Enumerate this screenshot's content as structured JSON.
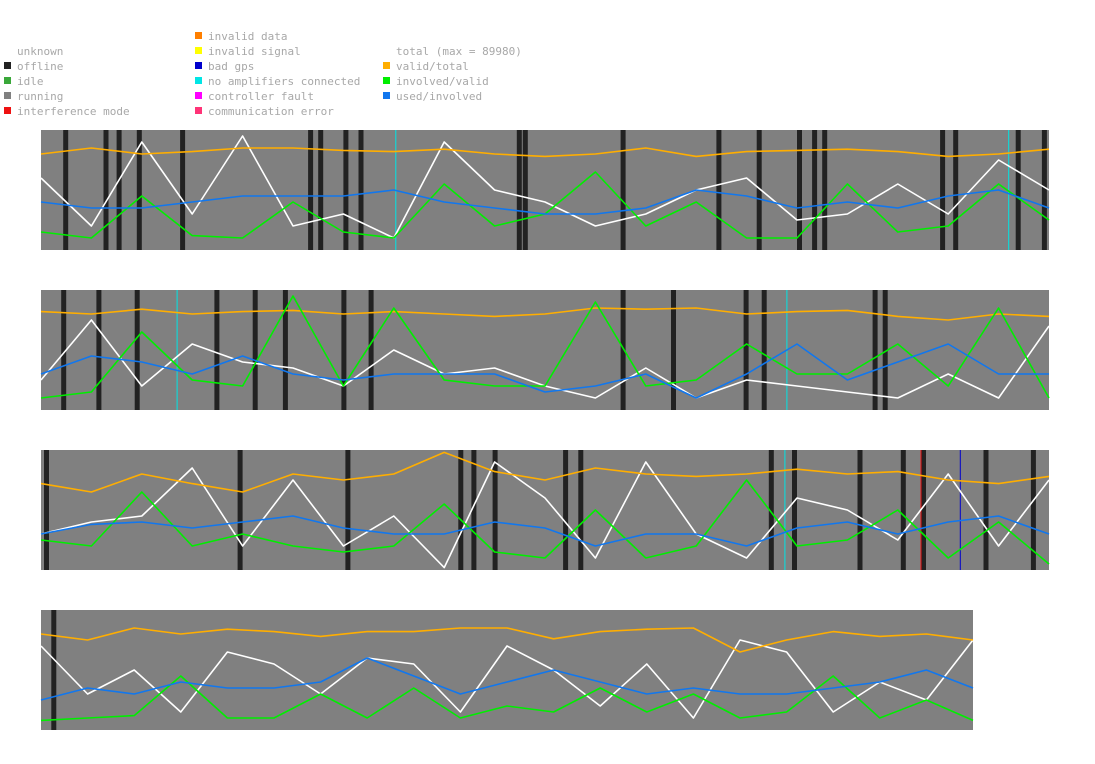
{
  "legend": {
    "status_items": [
      {
        "label": "unknown",
        "color": ""
      },
      {
        "label": "offline",
        "color": "#222222"
      },
      {
        "label": "idle",
        "color": "#3aa83a"
      },
      {
        "label": "running",
        "color": "#808080"
      },
      {
        "label": "interference mode",
        "color": "#ee1111"
      }
    ],
    "error_items": [
      {
        "label": "invalid data",
        "color": "#ff7f00"
      },
      {
        "label": "invalid signal",
        "color": "#ffff00"
      },
      {
        "label": "bad gps",
        "color": "#0000cc"
      },
      {
        "label": "no amplifiers connected",
        "color": "#00e5e5"
      },
      {
        "label": "controller fault",
        "color": "#ff00ff"
      },
      {
        "label": "communication error",
        "color": "#ff3377"
      }
    ],
    "line_items": [
      {
        "label": "total (max = 89980)",
        "color": ""
      },
      {
        "label": "valid/total",
        "color": "#ffae00"
      },
      {
        "label": "involved/valid",
        "color": "#00ee00"
      },
      {
        "label": "used/involved",
        "color": "#1177ee"
      }
    ]
  },
  "colors": {
    "running": "#808080",
    "offline": "#222222",
    "total": "#ffffff",
    "valid_total": "#ffae00",
    "involved_valid": "#00ee00",
    "used_involved": "#1177ee",
    "no_amplifiers": "#00e5e5",
    "interference": "#ee1111",
    "bad_gps": "#0000cc"
  },
  "chart_data": [
    {
      "type": "line",
      "x": [
        0,
        0.05,
        0.1,
        0.15,
        0.2,
        0.25,
        0.3,
        0.35,
        0.4,
        0.45,
        0.5,
        0.55,
        0.6,
        0.65,
        0.7,
        0.75,
        0.8,
        0.85,
        0.9,
        0.95,
        1
      ],
      "series": [
        {
          "name": "total",
          "values": [
            0.6,
            0.2,
            0.9,
            0.3,
            0.95,
            0.2,
            0.3,
            0.1,
            0.9,
            0.5,
            0.4,
            0.2,
            0.3,
            0.5,
            0.6,
            0.25,
            0.3,
            0.55,
            0.3,
            0.75,
            0.5
          ]
        },
        {
          "name": "valid/total",
          "values": [
            0.8,
            0.85,
            0.8,
            0.82,
            0.85,
            0.85,
            0.83,
            0.82,
            0.84,
            0.8,
            0.78,
            0.8,
            0.85,
            0.78,
            0.82,
            0.83,
            0.84,
            0.82,
            0.78,
            0.8,
            0.84
          ]
        },
        {
          "name": "involved/valid",
          "values": [
            0.15,
            0.1,
            0.45,
            0.12,
            0.1,
            0.4,
            0.15,
            0.1,
            0.55,
            0.2,
            0.3,
            0.65,
            0.2,
            0.4,
            0.1,
            0.1,
            0.55,
            0.15,
            0.2,
            0.55,
            0.25
          ]
        },
        {
          "name": "used/involved",
          "values": [
            0.4,
            0.35,
            0.35,
            0.4,
            0.45,
            0.45,
            0.45,
            0.5,
            0.4,
            0.35,
            0.3,
            0.3,
            0.35,
            0.5,
            0.45,
            0.35,
            0.4,
            0.35,
            0.45,
            0.5,
            0.35
          ]
        }
      ],
      "offline_bands": [
        0.022,
        0.062,
        0.075,
        0.095,
        0.138,
        0.265,
        0.275,
        0.3,
        0.315,
        0.472,
        0.478,
        0.575,
        0.67,
        0.71,
        0.75,
        0.765,
        0.775,
        0.892,
        0.905,
        0.967,
        0.993
      ],
      "error_marks": [
        {
          "pos": 0.352,
          "kind": "no amplifiers connected"
        },
        {
          "pos": 0.96,
          "kind": "no amplifiers connected"
        }
      ]
    },
    {
      "type": "line",
      "x": [
        0,
        0.05,
        0.1,
        0.15,
        0.2,
        0.25,
        0.3,
        0.35,
        0.4,
        0.45,
        0.5,
        0.55,
        0.6,
        0.65,
        0.7,
        0.75,
        0.8,
        0.85,
        0.9,
        0.95,
        1
      ],
      "series": [
        {
          "name": "total",
          "values": [
            0.25,
            0.75,
            0.2,
            0.55,
            0.4,
            0.35,
            0.2,
            0.5,
            0.3,
            0.35,
            0.2,
            0.1,
            0.35,
            0.1,
            0.25,
            0.2,
            0.15,
            0.1,
            0.3,
            0.1,
            0.7
          ]
        },
        {
          "name": "valid/total",
          "values": [
            0.82,
            0.8,
            0.84,
            0.8,
            0.82,
            0.83,
            0.8,
            0.82,
            0.8,
            0.78,
            0.8,
            0.85,
            0.84,
            0.85,
            0.8,
            0.82,
            0.83,
            0.78,
            0.75,
            0.8,
            0.78
          ]
        },
        {
          "name": "involved/valid",
          "values": [
            0.1,
            0.15,
            0.65,
            0.25,
            0.2,
            0.95,
            0.2,
            0.85,
            0.25,
            0.2,
            0.2,
            0.9,
            0.2,
            0.25,
            0.55,
            0.3,
            0.3,
            0.55,
            0.2,
            0.85,
            0.1
          ]
        },
        {
          "name": "used/involved",
          "values": [
            0.3,
            0.45,
            0.4,
            0.3,
            0.45,
            0.3,
            0.25,
            0.3,
            0.3,
            0.3,
            0.15,
            0.2,
            0.3,
            0.1,
            0.3,
            0.55,
            0.25,
            0.4,
            0.55,
            0.3,
            0.3
          ]
        }
      ],
      "offline_bands": [
        0.02,
        0.055,
        0.093,
        0.172,
        0.21,
        0.24,
        0.298,
        0.325,
        0.575,
        0.625,
        0.697,
        0.715,
        0.825,
        0.835
      ],
      "error_marks": [
        {
          "pos": 0.135,
          "kind": "no amplifiers connected"
        },
        {
          "pos": 0.74,
          "kind": "no amplifiers connected"
        }
      ]
    },
    {
      "type": "line",
      "x": [
        0,
        0.05,
        0.1,
        0.15,
        0.2,
        0.25,
        0.3,
        0.35,
        0.4,
        0.45,
        0.5,
        0.55,
        0.6,
        0.65,
        0.7,
        0.75,
        0.8,
        0.85,
        0.9,
        0.95,
        1
      ],
      "series": [
        {
          "name": "total",
          "values": [
            0.3,
            0.4,
            0.45,
            0.85,
            0.2,
            0.75,
            0.2,
            0.45,
            0.02,
            0.9,
            0.6,
            0.1,
            0.9,
            0.3,
            0.1,
            0.6,
            0.5,
            0.25,
            0.8,
            0.2,
            0.75
          ]
        },
        {
          "name": "valid/total",
          "values": [
            0.72,
            0.65,
            0.8,
            0.72,
            0.65,
            0.8,
            0.75,
            0.8,
            0.98,
            0.82,
            0.75,
            0.85,
            0.8,
            0.78,
            0.8,
            0.84,
            0.8,
            0.82,
            0.75,
            0.72,
            0.78
          ]
        },
        {
          "name": "involved/valid",
          "values": [
            0.25,
            0.2,
            0.65,
            0.2,
            0.3,
            0.2,
            0.15,
            0.2,
            0.55,
            0.15,
            0.1,
            0.5,
            0.1,
            0.2,
            0.75,
            0.2,
            0.25,
            0.5,
            0.1,
            0.4,
            0.05
          ]
        },
        {
          "name": "used/involved",
          "values": [
            0.3,
            0.38,
            0.4,
            0.35,
            0.4,
            0.45,
            0.35,
            0.3,
            0.3,
            0.4,
            0.35,
            0.2,
            0.3,
            0.3,
            0.2,
            0.35,
            0.4,
            0.3,
            0.4,
            0.45,
            0.3
          ]
        }
      ],
      "offline_bands": [
        0.003,
        0.195,
        0.302,
        0.414,
        0.427,
        0.448,
        0.518,
        0.533,
        0.722,
        0.745,
        0.81,
        0.853,
        0.873,
        0.935,
        0.982
      ],
      "error_marks": [
        {
          "pos": 0.738,
          "kind": "no amplifiers connected"
        },
        {
          "pos": 0.873,
          "kind": "interference mode"
        },
        {
          "pos": 0.912,
          "kind": "bad gps"
        }
      ]
    },
    {
      "type": "line",
      "x": [
        0,
        0.05,
        0.1,
        0.15,
        0.2,
        0.25,
        0.3,
        0.35,
        0.4,
        0.45,
        0.5,
        0.55,
        0.6,
        0.65,
        0.7,
        0.75,
        0.8,
        0.85,
        0.9,
        0.95,
        1
      ],
      "series": [
        {
          "name": "total",
          "values": [
            0.7,
            0.3,
            0.5,
            0.15,
            0.65,
            0.55,
            0.3,
            0.6,
            0.55,
            0.15,
            0.7,
            0.5,
            0.2,
            0.55,
            0.1,
            0.75,
            0.65,
            0.15,
            0.4,
            0.25,
            0.75
          ]
        },
        {
          "name": "valid/total",
          "values": [
            0.8,
            0.75,
            0.85,
            0.8,
            0.84,
            0.82,
            0.78,
            0.82,
            0.82,
            0.85,
            0.85,
            0.76,
            0.82,
            0.84,
            0.85,
            0.65,
            0.75,
            0.82,
            0.78,
            0.8,
            0.75
          ]
        },
        {
          "name": "involved/valid",
          "values": [
            0.08,
            0.1,
            0.12,
            0.45,
            0.1,
            0.1,
            0.3,
            0.1,
            0.35,
            0.1,
            0.2,
            0.15,
            0.35,
            0.15,
            0.3,
            0.1,
            0.15,
            0.45,
            0.1,
            0.25,
            0.08
          ]
        },
        {
          "name": "used/involved",
          "values": [
            0.25,
            0.35,
            0.3,
            0.4,
            0.35,
            0.35,
            0.4,
            0.6,
            0.45,
            0.3,
            0.4,
            0.5,
            0.4,
            0.3,
            0.35,
            0.3,
            0.3,
            0.35,
            0.4,
            0.5,
            0.35
          ]
        }
      ],
      "offline_bands": [
        0.011
      ],
      "error_marks": []
    }
  ]
}
